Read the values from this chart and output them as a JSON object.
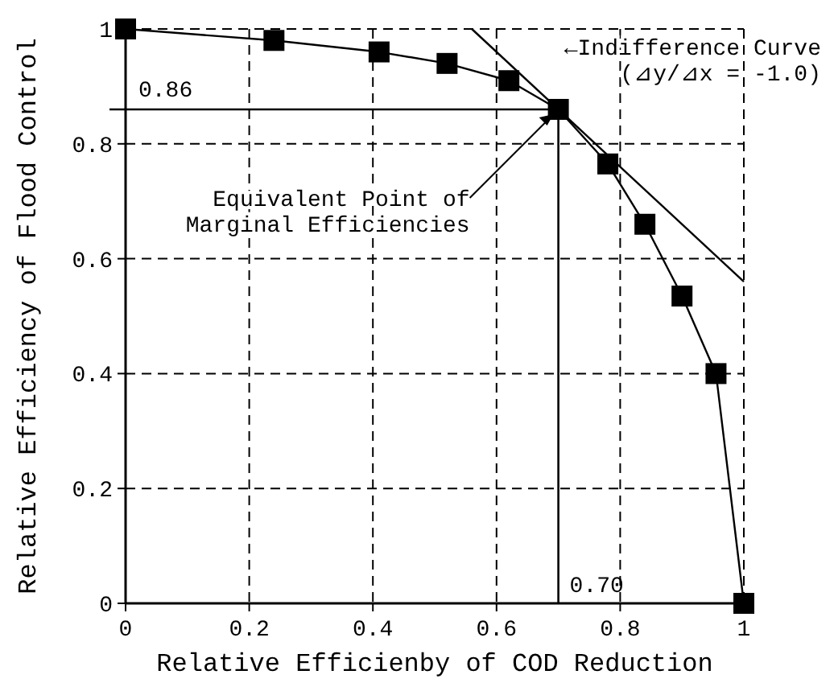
{
  "chart_data": {
    "type": "line",
    "xlabel": "Relative Efficienby of COD Reduction",
    "ylabel": "Relative Efficiency of Flood Control",
    "xlim": [
      0,
      1
    ],
    "ylim": [
      0,
      1
    ],
    "xticks": [
      0,
      0.2,
      0.4,
      0.6,
      0.8,
      1
    ],
    "yticks": [
      0,
      0.2,
      0.4,
      0.6,
      0.8,
      1
    ],
    "grid": true,
    "series": [
      {
        "color": "#000000",
        "marker": "square",
        "x": [
          0,
          0.24,
          0.41,
          0.52,
          0.62,
          0.7,
          0.78,
          0.84,
          0.9,
          0.955,
          1
        ],
        "values": [
          1,
          0.98,
          0.96,
          0.94,
          0.91,
          0.86,
          0.765,
          0.66,
          0.535,
          0.4,
          0
        ]
      },
      {
        "color": "#000000",
        "marker": "none",
        "x": [
          0.56,
          1
        ],
        "values": [
          1,
          0.56
        ]
      }
    ],
    "ref_lines": [
      {
        "axis": "y",
        "value": 0.86,
        "label": "0.86"
      },
      {
        "axis": "x",
        "value": 0.7,
        "label": "0.70"
      }
    ],
    "annotations": [
      "←Indifference Curve\n(⊿y/⊿x = -1.0)",
      {
        "text": "Equivalent Point of\nMarginal Efficiencies",
        "x": 0.7,
        "y": 0.86
      }
    ]
  }
}
